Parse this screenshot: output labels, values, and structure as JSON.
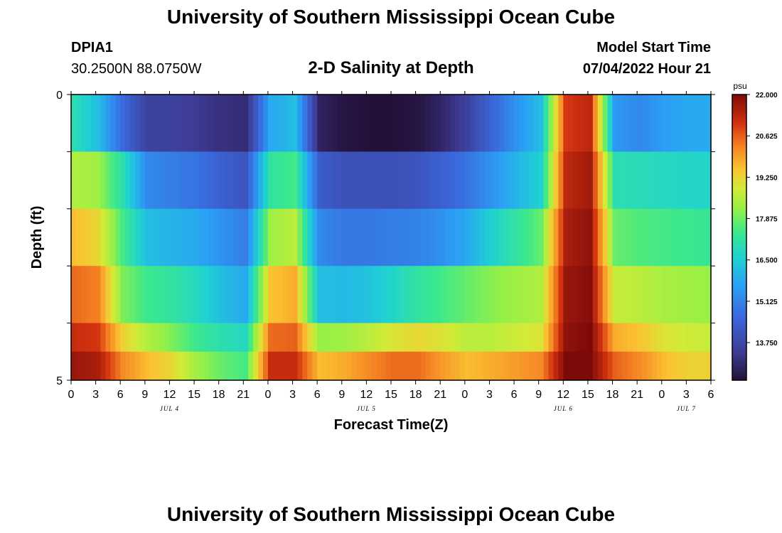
{
  "header": {
    "title": "University of Southern Mississippi Ocean Cube",
    "station": "DPIA1",
    "coords": "30.2500N  88.0750W",
    "plot_title": "2-D Salinity at Depth",
    "start_label": "Model Start Time",
    "start_value": "07/04/2022 Hour 21"
  },
  "footer": {
    "title": "University of Southern Mississippi Ocean Cube"
  },
  "chart_data": {
    "type": "heatmap",
    "title": "2-D Salinity at Depth",
    "xlabel": "Forecast Time(Z)",
    "ylabel": "Depth (ft)",
    "y_tick_labels": [
      "0",
      "5"
    ],
    "x_tick_labels": [
      "0",
      "3",
      "6",
      "9",
      "12",
      "15",
      "18",
      "21",
      "0",
      "3",
      "6",
      "9",
      "12",
      "15",
      "18",
      "21",
      "0",
      "3",
      "6",
      "9",
      "12",
      "15",
      "18",
      "21",
      "0",
      "3",
      "6"
    ],
    "day_labels": [
      {
        "label": "JUL 4",
        "hour": 12
      },
      {
        "label": "JUL 5",
        "hour": 36
      },
      {
        "label": "JUL 6",
        "hour": 60
      },
      {
        "label": "JUL 7",
        "hour": 75
      }
    ],
    "x_range_hours": [
      0,
      78
    ],
    "depth_range_ft": [
      0,
      5
    ],
    "colorbar": {
      "unit": "psu",
      "min": 12.5,
      "max": 22.0,
      "tick_labels": [
        "22.000",
        "20.625",
        "19.250",
        "17.875",
        "16.500",
        "15.125",
        "13.750"
      ],
      "tick_values": [
        22.0,
        20.625,
        19.25,
        17.875,
        16.5,
        15.125,
        13.75
      ]
    },
    "time_hours": [
      0,
      3,
      6,
      9,
      12,
      15,
      18,
      21,
      24,
      27,
      30,
      33,
      36,
      39,
      42,
      45,
      48,
      51,
      54,
      57,
      60,
      63,
      66,
      69,
      72,
      75,
      78
    ],
    "depth_layers_ft": [
      0.5,
      1.5,
      2.5,
      3.5,
      4.5,
      5.0
    ],
    "salinity_psu": [
      [
        17.0,
        16.2,
        14.6,
        13.6,
        13.6,
        13.4,
        13.2,
        13.1,
        15.8,
        16.2,
        12.9,
        12.6,
        12.5,
        12.5,
        12.6,
        13.0,
        13.6,
        14.5,
        15.4,
        16.2,
        21.0,
        21.3,
        15.5,
        15.2,
        15.6,
        15.8,
        15.8
      ],
      [
        18.5,
        18.3,
        17.0,
        15.2,
        15.0,
        14.8,
        14.4,
        14.1,
        17.2,
        17.5,
        14.3,
        14.0,
        14.0,
        14.0,
        14.1,
        14.4,
        14.8,
        15.4,
        16.0,
        16.6,
        21.3,
        21.6,
        17.0,
        16.9,
        16.8,
        16.7,
        16.7
      ],
      [
        19.6,
        19.2,
        17.5,
        16.2,
        16.0,
        15.8,
        15.4,
        15.0,
        18.3,
        18.6,
        15.2,
        14.9,
        14.9,
        15.0,
        15.1,
        15.4,
        15.8,
        16.6,
        17.2,
        17.8,
        21.5,
        21.8,
        17.8,
        17.6,
        17.5,
        17.4,
        17.3
      ],
      [
        20.5,
        20.3,
        18.0,
        17.4,
        17.2,
        16.8,
        16.2,
        15.8,
        19.5,
        19.8,
        16.2,
        16.1,
        16.3,
        16.7,
        17.2,
        17.5,
        17.8,
        18.1,
        18.3,
        18.5,
        21.7,
        21.9,
        18.7,
        18.6,
        18.4,
        18.3,
        18.2
      ],
      [
        21.2,
        21.0,
        19.3,
        18.5,
        18.0,
        17.4,
        17.0,
        16.8,
        20.5,
        20.6,
        18.2,
        18.3,
        18.6,
        19.0,
        19.2,
        19.0,
        18.6,
        18.6,
        18.8,
        19.0,
        21.8,
        22.0,
        19.8,
        19.5,
        19.0,
        18.8,
        18.7
      ],
      [
        21.7,
        21.5,
        20.2,
        19.6,
        19.2,
        18.3,
        17.8,
        17.5,
        21.2,
        21.2,
        19.6,
        19.8,
        20.2,
        20.5,
        20.5,
        20.0,
        19.6,
        19.8,
        20.0,
        20.2,
        22.0,
        22.0,
        20.6,
        20.2,
        19.6,
        19.3,
        19.3
      ]
    ]
  }
}
